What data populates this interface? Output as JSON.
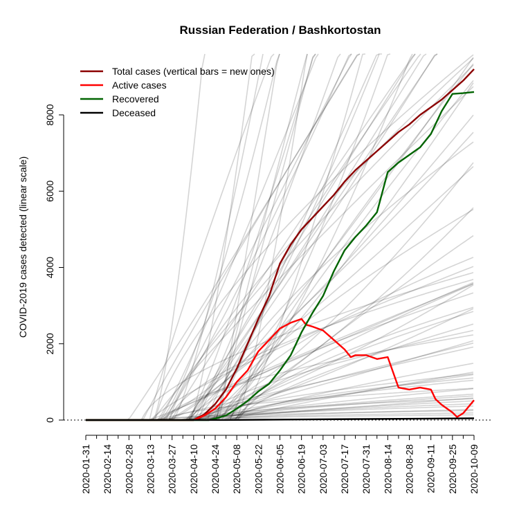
{
  "chart_data": {
    "type": "line",
    "title": "Russian Federation / Bashkortostan",
    "ylabel": "COVID-2019 cases detected (linear scale)",
    "xlabel": "",
    "y_scale": "linear",
    "xlim": [
      "2020-01-31",
      "2020-10-09"
    ],
    "ylim": [
      0,
      9500
    ],
    "y_ticks": [
      0,
      2000,
      4000,
      6000,
      8000
    ],
    "x_ticks": [
      "2020-01-31",
      "2020-02-14",
      "2020-02-28",
      "2020-03-13",
      "2020-03-27",
      "2020-04-10",
      "2020-04-24",
      "2020-05-08",
      "2020-05-22",
      "2020-06-05",
      "2020-06-19",
      "2020-07-03",
      "2020-07-17",
      "2020-07-31",
      "2020-08-14",
      "2020-08-28",
      "2020-09-11",
      "2020-09-25",
      "2020-10-09"
    ],
    "legend_position": "top-left",
    "series": [
      {
        "name": "Total cases (vertical bars = new ones)",
        "color": "#8b0000",
        "points": [
          [
            "2020-01-31",
            0
          ],
          [
            "2020-04-10",
            0
          ],
          [
            "2020-04-17",
            150
          ],
          [
            "2020-04-24",
            420
          ],
          [
            "2020-05-01",
            800
          ],
          [
            "2020-05-08",
            1350
          ],
          [
            "2020-05-15",
            2000
          ],
          [
            "2020-05-22",
            2650
          ],
          [
            "2020-05-29",
            3250
          ],
          [
            "2020-06-05",
            4100
          ],
          [
            "2020-06-12",
            4600
          ],
          [
            "2020-06-19",
            5000
          ],
          [
            "2020-06-26",
            5300
          ],
          [
            "2020-07-03",
            5600
          ],
          [
            "2020-07-10",
            5900
          ],
          [
            "2020-07-17",
            6250
          ],
          [
            "2020-07-24",
            6550
          ],
          [
            "2020-07-31",
            6800
          ],
          [
            "2020-08-07",
            7050
          ],
          [
            "2020-08-14",
            7300
          ],
          [
            "2020-08-21",
            7550
          ],
          [
            "2020-08-28",
            7750
          ],
          [
            "2020-09-04",
            8000
          ],
          [
            "2020-09-11",
            8200
          ],
          [
            "2020-09-18",
            8400
          ],
          [
            "2020-09-25",
            8650
          ],
          [
            "2020-10-02",
            8900
          ],
          [
            "2020-10-09",
            9200
          ]
        ]
      },
      {
        "name": "Active cases",
        "color": "#ff0000",
        "points": [
          [
            "2020-01-31",
            0
          ],
          [
            "2020-04-10",
            0
          ],
          [
            "2020-04-17",
            120
          ],
          [
            "2020-04-24",
            300
          ],
          [
            "2020-05-01",
            600
          ],
          [
            "2020-05-08",
            1000
          ],
          [
            "2020-05-15",
            1300
          ],
          [
            "2020-05-22",
            1800
          ],
          [
            "2020-05-29",
            2100
          ],
          [
            "2020-06-05",
            2400
          ],
          [
            "2020-06-12",
            2550
          ],
          [
            "2020-06-19",
            2650
          ],
          [
            "2020-06-22",
            2500
          ],
          [
            "2020-06-26",
            2450
          ],
          [
            "2020-07-03",
            2350
          ],
          [
            "2020-07-10",
            2100
          ],
          [
            "2020-07-17",
            1850
          ],
          [
            "2020-07-21",
            1650
          ],
          [
            "2020-07-24",
            1700
          ],
          [
            "2020-07-31",
            1700
          ],
          [
            "2020-08-07",
            1600
          ],
          [
            "2020-08-14",
            1650
          ],
          [
            "2020-08-21",
            850
          ],
          [
            "2020-08-28",
            800
          ],
          [
            "2020-09-04",
            850
          ],
          [
            "2020-09-11",
            800
          ],
          [
            "2020-09-14",
            550
          ],
          [
            "2020-09-18",
            400
          ],
          [
            "2020-09-25",
            200
          ],
          [
            "2020-09-28",
            80
          ],
          [
            "2020-10-02",
            180
          ],
          [
            "2020-10-09",
            520
          ]
        ]
      },
      {
        "name": "Recovered",
        "color": "#006400",
        "points": [
          [
            "2020-01-31",
            0
          ],
          [
            "2020-04-20",
            0
          ],
          [
            "2020-04-24",
            40
          ],
          [
            "2020-05-01",
            120
          ],
          [
            "2020-05-08",
            300
          ],
          [
            "2020-05-15",
            500
          ],
          [
            "2020-05-22",
            750
          ],
          [
            "2020-05-29",
            950
          ],
          [
            "2020-06-05",
            1300
          ],
          [
            "2020-06-12",
            1700
          ],
          [
            "2020-06-19",
            2300
          ],
          [
            "2020-06-26",
            2800
          ],
          [
            "2020-07-03",
            3250
          ],
          [
            "2020-07-10",
            3900
          ],
          [
            "2020-07-17",
            4450
          ],
          [
            "2020-07-24",
            4800
          ],
          [
            "2020-07-31",
            5100
          ],
          [
            "2020-08-07",
            5450
          ],
          [
            "2020-08-14",
            6500
          ],
          [
            "2020-08-21",
            6750
          ],
          [
            "2020-08-28",
            6950
          ],
          [
            "2020-09-04",
            7150
          ],
          [
            "2020-09-11",
            7500
          ],
          [
            "2020-09-18",
            8100
          ],
          [
            "2020-09-25",
            8550
          ],
          [
            "2020-10-02",
            8570
          ],
          [
            "2020-10-09",
            8600
          ]
        ]
      },
      {
        "name": "Deceased",
        "color": "#000000",
        "points": [
          [
            "2020-01-31",
            0
          ],
          [
            "2020-05-01",
            2
          ],
          [
            "2020-06-01",
            10
          ],
          [
            "2020-07-01",
            20
          ],
          [
            "2020-08-01",
            28
          ],
          [
            "2020-09-01",
            35
          ],
          [
            "2020-10-09",
            45
          ]
        ]
      }
    ],
    "background_series_count": 80
  }
}
